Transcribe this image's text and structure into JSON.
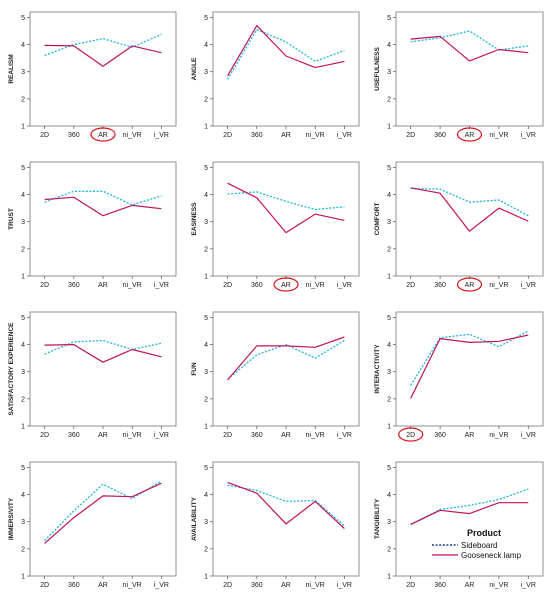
{
  "colors": {
    "sideboard": "#1fb5e0",
    "gooseneck": "#c0135a",
    "highlight": "#d8141b"
  },
  "legend": {
    "title": "Product",
    "entries": [
      {
        "name": "Sideboard",
        "style": "dotted",
        "color": "#1fb5e0"
      },
      {
        "name": "Gooseneck lamp",
        "style": "solid",
        "color": "#c0135a"
      }
    ]
  },
  "chart_data": [
    {
      "type": "line",
      "ylabel": "REALISM",
      "categories": [
        "2D",
        "360",
        "AR",
        "ni_VR",
        "i_VR"
      ],
      "yticks": [
        1,
        2,
        3,
        4,
        5
      ],
      "ylim": [
        1,
        5
      ],
      "highlight": "AR",
      "series": [
        {
          "name": "Sideboard",
          "values": [
            3.6,
            4.0,
            4.22,
            3.9,
            4.38
          ]
        },
        {
          "name": "Gooseneck lamp",
          "values": [
            3.97,
            3.95,
            3.2,
            3.95,
            3.7
          ]
        }
      ]
    },
    {
      "type": "line",
      "ylabel": "ANGLE",
      "categories": [
        "2D",
        "360",
        "AR",
        "ni_VR",
        "i_VR"
      ],
      "yticks": [
        1,
        2,
        3,
        4,
        5
      ],
      "ylim": [
        1,
        5
      ],
      "highlight": null,
      "series": [
        {
          "name": "Sideboard",
          "values": [
            2.72,
            4.55,
            4.1,
            3.38,
            3.78
          ]
        },
        {
          "name": "Gooseneck lamp",
          "values": [
            2.85,
            4.7,
            3.58,
            3.15,
            3.38
          ]
        }
      ]
    },
    {
      "type": "line",
      "ylabel": "USEFULNESS",
      "categories": [
        "2D",
        "360",
        "AR",
        "ni_VR",
        "i_VR"
      ],
      "yticks": [
        1,
        2,
        3,
        4,
        5
      ],
      "ylim": [
        1,
        5
      ],
      "highlight": "AR",
      "series": [
        {
          "name": "Sideboard",
          "values": [
            4.1,
            4.25,
            4.5,
            3.8,
            3.95
          ]
        },
        {
          "name": "Gooseneck lamp",
          "values": [
            4.2,
            4.3,
            3.4,
            3.82,
            3.7
          ]
        }
      ]
    },
    {
      "type": "line",
      "ylabel": "TRUST",
      "categories": [
        "2D",
        "360",
        "AR",
        "ni_VR",
        "i_VR"
      ],
      "yticks": [
        1,
        2,
        3,
        4,
        5
      ],
      "ylim": [
        1,
        5
      ],
      "highlight": null,
      "series": [
        {
          "name": "Sideboard",
          "values": [
            3.72,
            4.12,
            4.12,
            3.62,
            3.95
          ]
        },
        {
          "name": "Gooseneck lamp",
          "values": [
            3.82,
            3.9,
            3.22,
            3.6,
            3.48
          ]
        }
      ]
    },
    {
      "type": "line",
      "ylabel": "EASINESS",
      "categories": [
        "2D",
        "360",
        "AR",
        "ni_VR",
        "i_VR"
      ],
      "yticks": [
        1,
        2,
        3,
        4,
        5
      ],
      "ylim": [
        1,
        5
      ],
      "highlight": "AR",
      "series": [
        {
          "name": "Sideboard",
          "values": [
            4.02,
            4.1,
            3.75,
            3.45,
            3.55
          ]
        },
        {
          "name": "Gooseneck lamp",
          "values": [
            4.42,
            3.88,
            2.6,
            3.28,
            3.05
          ]
        }
      ]
    },
    {
      "type": "line",
      "ylabel": "COMFORT",
      "categories": [
        "2D",
        "360",
        "AR",
        "ni_VR",
        "i_VR"
      ],
      "yticks": [
        1,
        2,
        3,
        4,
        5
      ],
      "ylim": [
        1,
        5
      ],
      "highlight": "AR",
      "series": [
        {
          "name": "Sideboard",
          "values": [
            4.22,
            4.2,
            3.72,
            3.8,
            3.22
          ]
        },
        {
          "name": "Gooseneck lamp",
          "values": [
            4.25,
            4.05,
            2.65,
            3.5,
            3.02
          ]
        }
      ]
    },
    {
      "type": "line",
      "ylabel": "SATISFACTORY EXPERIENCE",
      "categories": [
        "2D",
        "360",
        "AR",
        "ni_VR",
        "i_VR"
      ],
      "yticks": [
        1,
        2,
        3,
        4,
        5
      ],
      "ylim": [
        1,
        5
      ],
      "highlight": null,
      "series": [
        {
          "name": "Sideboard",
          "values": [
            3.65,
            4.1,
            4.15,
            3.82,
            4.05
          ]
        },
        {
          "name": "Gooseneck lamp",
          "values": [
            3.98,
            4.0,
            3.35,
            3.82,
            3.55
          ]
        }
      ]
    },
    {
      "type": "line",
      "ylabel": "FUN",
      "categories": [
        "2D",
        "360",
        "AR",
        "ni_VR",
        "i_VR"
      ],
      "yticks": [
        1,
        2,
        3,
        4,
        5
      ],
      "ylim": [
        1,
        5
      ],
      "highlight": null,
      "series": [
        {
          "name": "Sideboard",
          "values": [
            2.72,
            3.62,
            4.0,
            3.5,
            4.15
          ]
        },
        {
          "name": "Gooseneck lamp",
          "values": [
            2.7,
            3.95,
            3.95,
            3.9,
            4.28
          ]
        }
      ]
    },
    {
      "type": "line",
      "ylabel": "INTERACTIVITY",
      "categories": [
        "2D",
        "360",
        "AR",
        "ni_VR",
        "i_VR"
      ],
      "yticks": [
        1,
        2,
        3,
        4,
        5
      ],
      "ylim": [
        1,
        5
      ],
      "highlight": "2D",
      "series": [
        {
          "name": "Sideboard",
          "values": [
            2.5,
            4.25,
            4.38,
            3.92,
            4.5
          ]
        },
        {
          "name": "Gooseneck lamp",
          "values": [
            2.02,
            4.22,
            4.08,
            4.12,
            4.35
          ]
        }
      ]
    },
    {
      "type": "line",
      "ylabel": "IMMERSIVITY",
      "categories": [
        "2D",
        "360",
        "AR",
        "ni_VR",
        "i_VR"
      ],
      "yticks": [
        1,
        2,
        3,
        4,
        5
      ],
      "ylim": [
        1,
        5
      ],
      "highlight": null,
      "series": [
        {
          "name": "Sideboard",
          "values": [
            2.3,
            3.4,
            4.38,
            3.85,
            4.5
          ]
        },
        {
          "name": "Gooseneck lamp",
          "values": [
            2.2,
            3.15,
            3.95,
            3.92,
            4.42
          ]
        }
      ]
    },
    {
      "type": "line",
      "ylabel": "AVAILABILITY",
      "categories": [
        "2D",
        "360",
        "AR",
        "ni_VR",
        "i_VR"
      ],
      "yticks": [
        1,
        2,
        3,
        4,
        5
      ],
      "ylim": [
        1,
        5
      ],
      "highlight": null,
      "series": [
        {
          "name": "Sideboard",
          "values": [
            4.35,
            4.15,
            3.75,
            3.78,
            2.85
          ]
        },
        {
          "name": "Gooseneck lamp",
          "values": [
            4.45,
            4.05,
            2.92,
            3.75,
            2.75
          ]
        }
      ]
    },
    {
      "type": "line",
      "ylabel": "TANGIBILITY",
      "categories": [
        "2D",
        "360",
        "AR",
        "ni_VR",
        "i_VR"
      ],
      "yticks": [
        1,
        2,
        3,
        4,
        5
      ],
      "ylim": [
        1,
        5
      ],
      "highlight": null,
      "series": [
        {
          "name": "Sideboard",
          "values": [
            2.9,
            3.45,
            3.6,
            3.82,
            4.2
          ]
        },
        {
          "name": "Gooseneck lamp",
          "values": [
            2.9,
            3.42,
            3.3,
            3.7,
            3.7
          ]
        }
      ]
    }
  ]
}
